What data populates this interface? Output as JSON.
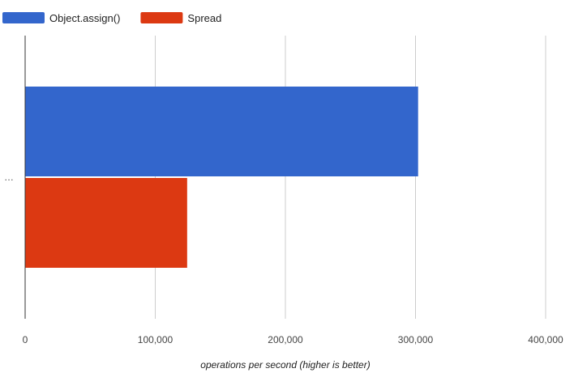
{
  "chart_data": {
    "type": "bar",
    "orientation": "horizontal",
    "categories": [
      "…"
    ],
    "series": [
      {
        "name": "Object.assign()",
        "values": [
          302000
        ],
        "color": "#3366cc"
      },
      {
        "name": "Spread",
        "values": [
          124500
        ],
        "color": "#dc3912"
      }
    ],
    "xlabel": "operations per second (higher is better)",
    "ylabel": "",
    "xlim": [
      0,
      400000
    ],
    "x_ticks": [
      0,
      100000,
      200000,
      300000,
      400000
    ],
    "x_tick_labels": [
      "0",
      "100,000",
      "200,000",
      "300,000",
      "400,000"
    ],
    "grid": "vertical",
    "legend_position": "top-left"
  }
}
